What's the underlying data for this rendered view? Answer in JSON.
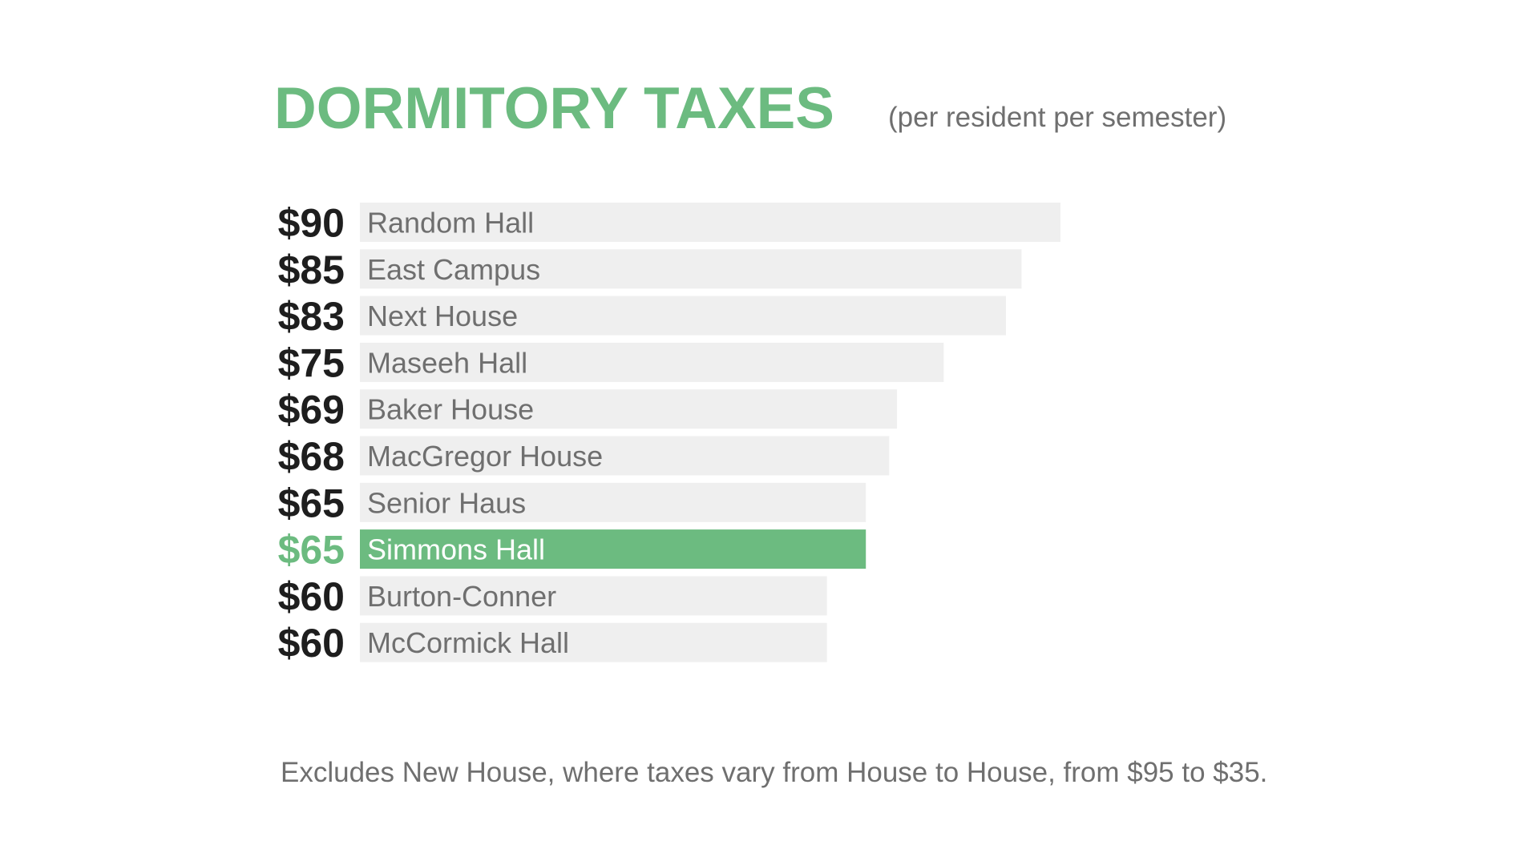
{
  "chart_data": {
    "type": "bar",
    "orientation": "horizontal",
    "title": "DORMITORY TAXES",
    "subtitle": "(per resident per semester)",
    "footnote": "Excludes New House, where taxes vary from House to House, from $95 to $35.",
    "categories": [
      "Random Hall",
      "East Campus",
      "Next House",
      "Maseeh Hall",
      "Baker House",
      "MacGregor House",
      "Senior Haus",
      "Simmons Hall",
      "Burton-Conner",
      "McCormick Hall"
    ],
    "values": [
      90,
      85,
      83,
      75,
      69,
      68,
      65,
      65,
      60,
      60
    ],
    "value_labels": [
      "$90",
      "$85",
      "$83",
      "$75",
      "$69",
      "$68",
      "$65",
      "$65",
      "$60",
      "$60"
    ],
    "highlighted": "Simmons Hall",
    "xlim": [
      0,
      90
    ],
    "grid": false,
    "legend": "none"
  },
  "colors": {
    "accent": "#6cbb80",
    "bar": "#efefef",
    "value_text": "#1e1e1e",
    "label_text": "#6f6f6f",
    "highlight_label_text": "#ffffff"
  }
}
